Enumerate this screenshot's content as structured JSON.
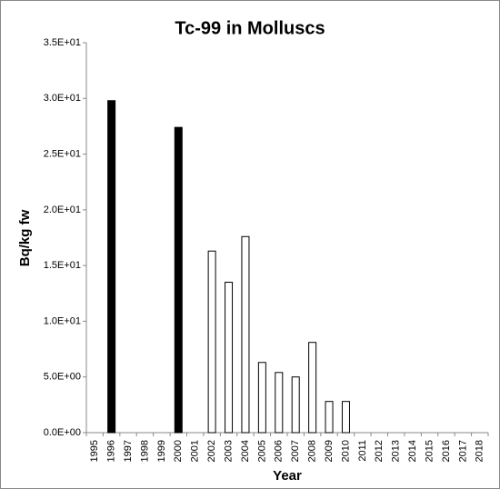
{
  "chart_data": {
    "type": "bar",
    "title": "Tc-99 in Molluscs",
    "x_label": "Year",
    "y_label": "Bq/kg fw",
    "categories": [
      "1995",
      "1996",
      "1997",
      "1998",
      "1999",
      "2000",
      "2001",
      "2002",
      "2003",
      "2004",
      "2005",
      "2006",
      "2007",
      "2008",
      "2009",
      "2010",
      "2011",
      "2012",
      "2013",
      "2014",
      "2015",
      "2016",
      "2017",
      "2018"
    ],
    "values": [
      null,
      29.8,
      null,
      null,
      null,
      27.4,
      null,
      16.3,
      13.5,
      17.6,
      6.3,
      5.4,
      5.0,
      8.1,
      2.8,
      2.8,
      null,
      null,
      null,
      null,
      null,
      null,
      null,
      null
    ],
    "colors": [
      null,
      "#000000",
      null,
      null,
      null,
      "#000000",
      null,
      "#ffffff",
      "#ffffff",
      "#ffffff",
      "#ffffff",
      "#ffffff",
      "#ffffff",
      "#ffffff",
      "#ffffff",
      "#ffffff",
      null,
      null,
      null,
      null,
      null,
      null,
      null,
      null
    ],
    "ylim": [
      0,
      35
    ],
    "yticks": [
      {
        "value": 0,
        "label": "0.0E+00"
      },
      {
        "value": 5,
        "label": "5.0E+00"
      },
      {
        "value": 10,
        "label": "1.0E+01"
      },
      {
        "value": 15,
        "label": "1.5E+01"
      },
      {
        "value": 20,
        "label": "2.0E+01"
      },
      {
        "value": 25,
        "label": "2.5E+01"
      },
      {
        "value": 30,
        "label": "3.0E+01"
      },
      {
        "value": 35,
        "label": "3.5E+01"
      }
    ],
    "grid": false
  }
}
